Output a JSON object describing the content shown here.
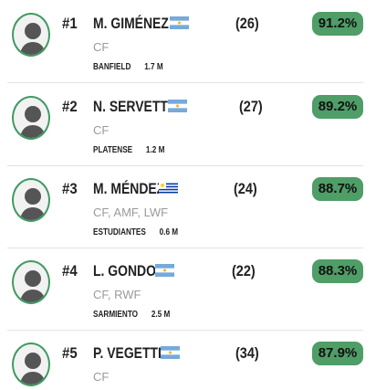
{
  "players": [
    {
      "rank": "#1",
      "name": "M. GIMÉNEZ",
      "flag": "argentina-flag-icon",
      "position": "CF",
      "club": "BANFIELD",
      "value": "1.7 M",
      "age": "(26)",
      "score": "91.2%"
    },
    {
      "rank": "#2",
      "name": "N. SERVETTO",
      "flag": "argentina-flag-icon",
      "position": "CF",
      "club": "PLATENSE",
      "value": "1.2 M",
      "age": "(27)",
      "score": "89.2%"
    },
    {
      "rank": "#3",
      "name": "M. MÉNDEZ",
      "flag": "uruguay-flag-icon",
      "position": "CF, AMF, LWF",
      "club": "ESTUDIANTES",
      "value": "0.6 M",
      "age": "(24)",
      "score": "88.7%"
    },
    {
      "rank": "#4",
      "name": "L. GONDOU",
      "flag": "argentina-flag-icon",
      "position": "CF, RWF",
      "club": "SARMIENTO",
      "value": "2.5 M",
      "age": "(22)",
      "score": "88.3%"
    },
    {
      "rank": "#5",
      "name": "P. VEGETTI",
      "flag": "argentina-flag-icon",
      "position": "CF",
      "club": "",
      "value": "",
      "age": "(34)",
      "score": "87.9%"
    }
  ],
  "colors": {
    "accent": "#4f9d67",
    "avatar_border": "#3f9a62",
    "muted": "#9a9a9a"
  }
}
